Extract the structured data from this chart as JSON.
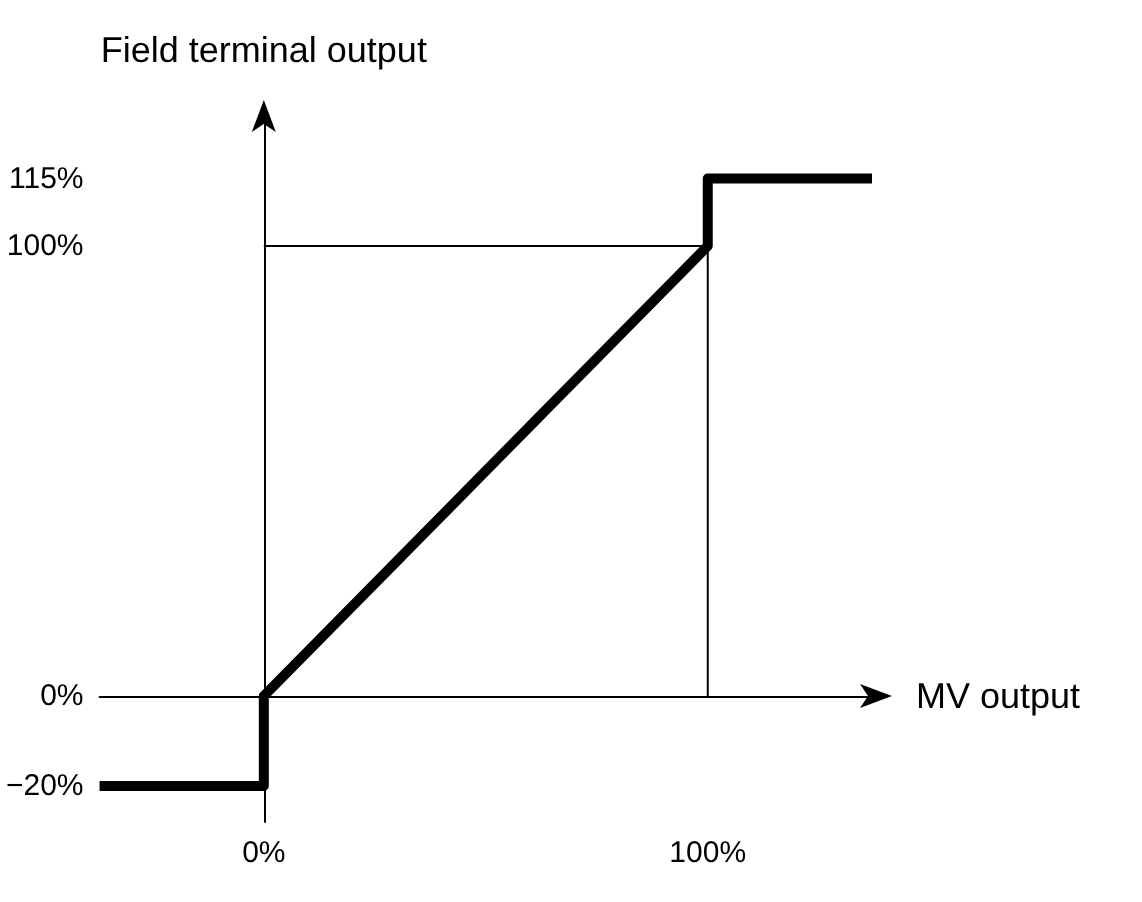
{
  "chart_data": {
    "type": "line",
    "xlabel": "MV output",
    "ylabel": "Field terminal output",
    "xlim": [
      -37,
      137
    ],
    "ylim": [
      -28,
      128
    ],
    "xticks": [
      {
        "value": 0,
        "label": "0%"
      },
      {
        "value": 100,
        "label": "100%"
      }
    ],
    "yticks": [
      {
        "value": -20,
        "label": "−20%"
      },
      {
        "value": 0,
        "label": "0%"
      },
      {
        "value": 100,
        "label": "100%"
      },
      {
        "value": 115,
        "label": "115%"
      }
    ],
    "series": [
      {
        "color": "#000000",
        "x": [
          0,
          100,
          100
        ],
        "values": [
          100,
          100,
          0
        ]
      },
      {
        "color": "#000000",
        "x": [
          -37,
          0,
          0,
          100,
          100,
          137
        ],
        "values": [
          -20,
          -20,
          0,
          100,
          115,
          115
        ]
      }
    ],
    "marker": "none",
    "line_style": "solid"
  }
}
